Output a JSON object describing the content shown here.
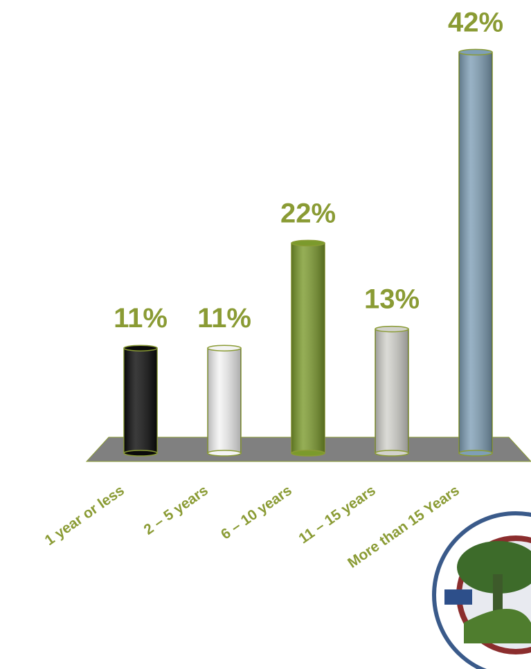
{
  "chart_data": {
    "type": "bar",
    "categories": [
      "1 year or less",
      "2 – 5 years",
      "6 – 10 years",
      "11 – 15 years",
      "More than 15 Years"
    ],
    "values": [
      11,
      11,
      22,
      13,
      42
    ],
    "value_labels": [
      "11%",
      "11%",
      "22%",
      "13%",
      "42%"
    ],
    "colors": [
      "#0a0a0a",
      "#f4f4f4",
      "#7b9a2c",
      "#d2d2cc",
      "#7f9fb6"
    ]
  }
}
